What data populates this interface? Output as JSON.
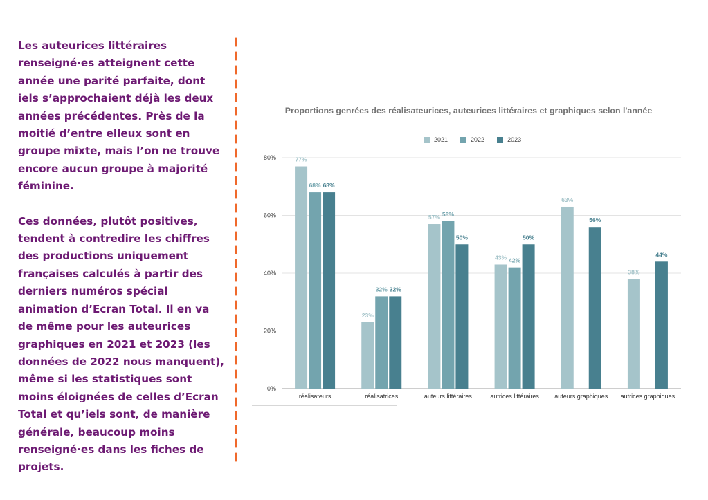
{
  "text": {
    "paragraph1": "Les auteurices littéraires renseigné·es atteignent cette année une parité parfaite, dont iels s’approchaient déjà les deux années précédentes. Près de la moitié d’entre elleux sont en groupe mixte, mais l’on ne trouve encore aucun groupe à majorité féminine.",
    "paragraph2": "Ces données, plutôt positives, tendent à contredire les chiffres des productions uniquement françaises calculés à partir des derniers numéros spécial animation d’Ecran Total. Il en va de même pour les auteurices graphiques en 2021 et 2023 (les données de 2022 nous manquent), même si les statistiques sont moins éloignées de celles d’Ecran Total et qu’iels sont, de manière générale, beaucoup moins renseigné·es dans les fiches de projets."
  },
  "colors": {
    "text": "#6d1a73",
    "divider": "#f0692b",
    "s2021": "#a5c4ca",
    "s2022": "#73a4ae",
    "s2023": "#48808f"
  },
  "chart_data": {
    "type": "bar",
    "title": "Proportions genrées des réalisateurices, auteurices littéraires et graphiques selon l'année",
    "categories": [
      "réalisateurs",
      "réalisatrices",
      "auteurs littéraires",
      "autrices littéraires",
      "auteurs graphiques",
      "autrices graphiques"
    ],
    "series": [
      {
        "name": "2021",
        "values": [
          77,
          23,
          57,
          43,
          63,
          38
        ],
        "labels": [
          "77%",
          "23%",
          "57%",
          "43%",
          "63%",
          "38%"
        ]
      },
      {
        "name": "2022",
        "values": [
          68,
          32,
          58,
          42,
          null,
          null
        ],
        "labels": [
          "68%",
          "32%",
          "58%",
          "42%",
          "",
          ""
        ]
      },
      {
        "name": "2023",
        "values": [
          68,
          32,
          50,
          50,
          56,
          44
        ],
        "labels": [
          "68%",
          "32%",
          "50%",
          "50%",
          "56%",
          "44%"
        ]
      }
    ],
    "yticks": [
      "0%",
      "20%",
      "40%",
      "60%",
      "80%"
    ],
    "ylim": [
      0,
      80
    ],
    "legend_position": "top-center",
    "grid": true
  }
}
